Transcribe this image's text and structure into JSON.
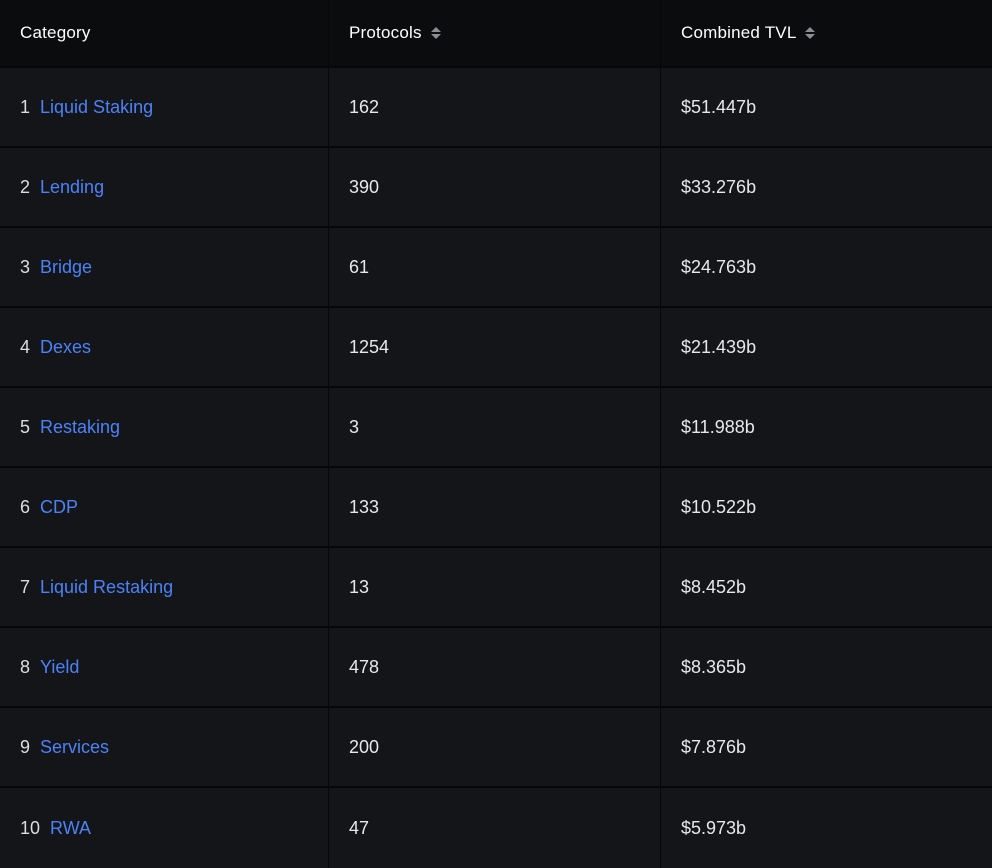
{
  "colors": {
    "accent_link": "#4c82f7",
    "row_background": "#141519",
    "page_background": "#060708"
  },
  "table": {
    "headers": {
      "category": "Category",
      "protocols": "Protocols",
      "combined_tvl": "Combined TVL"
    },
    "rows": [
      {
        "rank": "1",
        "category": "Liquid Staking",
        "protocols": "162",
        "tvl": "$51.447b"
      },
      {
        "rank": "2",
        "category": "Lending",
        "protocols": "390",
        "tvl": "$33.276b"
      },
      {
        "rank": "3",
        "category": "Bridge",
        "protocols": "61",
        "tvl": "$24.763b"
      },
      {
        "rank": "4",
        "category": "Dexes",
        "protocols": "1254",
        "tvl": "$21.439b"
      },
      {
        "rank": "5",
        "category": "Restaking",
        "protocols": "3",
        "tvl": "$11.988b"
      },
      {
        "rank": "6",
        "category": "CDP",
        "protocols": "133",
        "tvl": "$10.522b"
      },
      {
        "rank": "7",
        "category": "Liquid Restaking",
        "protocols": "13",
        "tvl": "$8.452b"
      },
      {
        "rank": "8",
        "category": "Yield",
        "protocols": "478",
        "tvl": "$8.365b"
      },
      {
        "rank": "9",
        "category": "Services",
        "protocols": "200",
        "tvl": "$7.876b"
      },
      {
        "rank": "10",
        "category": "RWA",
        "protocols": "47",
        "tvl": "$5.973b"
      }
    ]
  }
}
